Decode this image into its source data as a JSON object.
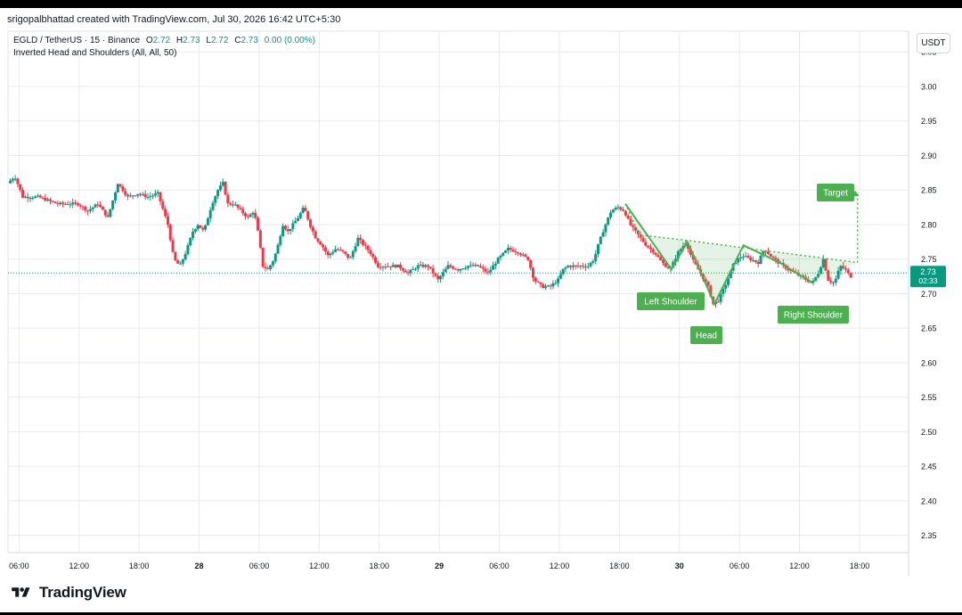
{
  "header": {
    "caption": "srigopalbhattad created with TradingView.com, Jul 30, 2026 16:42 UTC+5:30"
  },
  "legend": {
    "symbol": "EGLD / TetherUS · 15 · Binance",
    "open_label": "O",
    "open": "2.72",
    "high_label": "H",
    "high": "2.73",
    "low_label": "L",
    "low": "2.72",
    "close_label": "C",
    "close": "2.73",
    "change": "0.00 (0.00%)",
    "indicator": "Inverted Head and Shoulders (All, All, 50)"
  },
  "currency_button": "USDT",
  "price_tag": {
    "price": "2.73",
    "countdown": "02:33"
  },
  "footer": {
    "logo_text": "TradingView"
  },
  "colors": {
    "up": "#089981",
    "down": "#f23645",
    "pattern": "#4caf50",
    "label_bg": "#4caf50"
  },
  "chart_data": {
    "type": "candlestick",
    "symbol": "EGLD / TetherUS",
    "interval": "15",
    "y_ticks": [
      "3.05",
      "3.00",
      "2.95",
      "2.90",
      "2.85",
      "2.80",
      "2.75",
      "2.70",
      "2.65",
      "2.60",
      "2.55",
      "2.50",
      "2.45",
      "2.40",
      "2.35"
    ],
    "ylim": [
      2.325,
      3.08
    ],
    "x_ticks": [
      {
        "label": "06:00",
        "x": 0
      },
      {
        "label": "12:00",
        "x": 6
      },
      {
        "label": "18:00",
        "x": 12
      },
      {
        "label": "28",
        "x": 18
      },
      {
        "label": "06:00",
        "x": 24
      },
      {
        "label": "12:00",
        "x": 30
      },
      {
        "label": "18:00",
        "x": 36
      },
      {
        "label": "29",
        "x": 42
      },
      {
        "label": "06:00",
        "x": 48
      },
      {
        "label": "12:00",
        "x": 54
      },
      {
        "label": "18:00",
        "x": 60
      },
      {
        "label": "30",
        "x": 66
      },
      {
        "label": "06:00",
        "x": 72
      },
      {
        "label": "12:00",
        "x": 78
      },
      {
        "label": "18:00",
        "x": 84
      }
    ],
    "xlim": [
      -1.1,
      88.9
    ],
    "x_unit": "hours since 27 06:00",
    "bold_ticks": [
      "28",
      "29",
      "30"
    ],
    "grid": true,
    "current_price": 2.73,
    "price_path": [
      [
        -1.0,
        2.86
      ],
      [
        -0.3,
        2.87
      ],
      [
        0.5,
        2.84
      ],
      [
        2,
        2.84
      ],
      [
        3,
        2.835
      ],
      [
        4,
        2.83
      ],
      [
        5,
        2.83
      ],
      [
        6,
        2.83
      ],
      [
        7,
        2.82
      ],
      [
        8,
        2.83
      ],
      [
        9,
        2.81
      ],
      [
        10,
        2.86
      ],
      [
        11,
        2.84
      ],
      [
        12,
        2.845
      ],
      [
        13,
        2.84
      ],
      [
        14,
        2.845
      ],
      [
        15,
        2.8
      ],
      [
        15.6,
        2.75
      ],
      [
        16.2,
        2.74
      ],
      [
        16.8,
        2.76
      ],
      [
        17.5,
        2.79
      ],
      [
        18,
        2.8
      ],
      [
        18.6,
        2.79
      ],
      [
        19.4,
        2.83
      ],
      [
        20,
        2.85
      ],
      [
        20.5,
        2.86
      ],
      [
        21,
        2.83
      ],
      [
        21.6,
        2.83
      ],
      [
        22.3,
        2.82
      ],
      [
        23,
        2.81
      ],
      [
        23.6,
        2.82
      ],
      [
        24,
        2.79
      ],
      [
        24.5,
        2.74
      ],
      [
        25,
        2.735
      ],
      [
        25.6,
        2.75
      ],
      [
        26,
        2.77
      ],
      [
        26.5,
        2.8
      ],
      [
        27,
        2.79
      ],
      [
        27.5,
        2.8
      ],
      [
        28,
        2.81
      ],
      [
        28.6,
        2.825
      ],
      [
        29.2,
        2.8
      ],
      [
        29.8,
        2.78
      ],
      [
        30.4,
        2.77
      ],
      [
        31,
        2.755
      ],
      [
        31.8,
        2.765
      ],
      [
        32.5,
        2.76
      ],
      [
        33.2,
        2.75
      ],
      [
        34,
        2.78
      ],
      [
        34.6,
        2.77
      ],
      [
        35.2,
        2.76
      ],
      [
        36,
        2.74
      ],
      [
        37,
        2.74
      ],
      [
        38,
        2.74
      ],
      [
        39,
        2.73
      ],
      [
        40,
        2.74
      ],
      [
        41,
        2.74
      ],
      [
        42,
        2.72
      ],
      [
        43,
        2.74
      ],
      [
        44,
        2.735
      ],
      [
        45,
        2.74
      ],
      [
        46,
        2.74
      ],
      [
        47,
        2.73
      ],
      [
        48,
        2.75
      ],
      [
        49,
        2.765
      ],
      [
        50,
        2.76
      ],
      [
        51,
        2.75
      ],
      [
        51.6,
        2.72
      ],
      [
        52.4,
        2.71
      ],
      [
        53.2,
        2.71
      ],
      [
        54,
        2.72
      ],
      [
        54.5,
        2.735
      ],
      [
        55,
        2.74
      ],
      [
        56,
        2.74
      ],
      [
        57,
        2.74
      ],
      [
        57.6,
        2.75
      ],
      [
        58,
        2.77
      ],
      [
        58.6,
        2.795
      ],
      [
        59.3,
        2.82
      ],
      [
        60,
        2.825
      ],
      [
        60.6,
        2.82
      ],
      [
        61.2,
        2.8
      ],
      [
        62,
        2.785
      ],
      [
        62.8,
        2.77
      ],
      [
        63.6,
        2.76
      ],
      [
        64.4,
        2.745
      ],
      [
        65.2,
        2.735
      ],
      [
        66,
        2.76
      ],
      [
        66.8,
        2.775
      ],
      [
        67.4,
        2.75
      ],
      [
        68.2,
        2.73
      ],
      [
        69,
        2.71
      ],
      [
        69.5,
        2.685
      ],
      [
        70,
        2.69
      ],
      [
        70.8,
        2.715
      ],
      [
        71.6,
        2.745
      ],
      [
        72.4,
        2.755
      ],
      [
        73.2,
        2.75
      ],
      [
        74,
        2.745
      ],
      [
        74.6,
        2.765
      ],
      [
        75.2,
        2.755
      ],
      [
        76,
        2.745
      ],
      [
        77,
        2.735
      ],
      [
        77.6,
        2.73
      ],
      [
        78.2,
        2.725
      ],
      [
        78.8,
        2.72
      ],
      [
        79.4,
        2.715
      ],
      [
        80,
        2.73
      ],
      [
        80.5,
        2.75
      ],
      [
        81,
        2.72
      ],
      [
        81.6,
        2.715
      ],
      [
        82.2,
        2.74
      ],
      [
        82.7,
        2.735
      ],
      [
        83.2,
        2.725
      ]
    ],
    "pattern": {
      "name": "Inverted Head and Shoulders",
      "zigzag": [
        [
          60.6,
          2.83
        ],
        [
          65.2,
          2.735
        ],
        [
          66.8,
          2.775
        ],
        [
          69.5,
          2.685
        ],
        [
          72.4,
          2.77
        ],
        [
          76,
          2.745
        ],
        [
          79.4,
          2.715
        ]
      ],
      "neckline": [
        [
          60.6,
          2.83
        ],
        [
          62,
          2.785
        ],
        [
          66.8,
          2.777
        ],
        [
          72.6,
          2.766
        ],
        [
          83.8,
          2.745
        ]
      ],
      "target_line": [
        [
          83.8,
          2.745
        ],
        [
          83.8,
          2.843
        ]
      ],
      "target_price": 2.843,
      "labels": {
        "left_shoulder": "Left Shoulder",
        "head": "Head",
        "right_shoulder": "Right Shoulder",
        "target": "Target"
      }
    }
  }
}
